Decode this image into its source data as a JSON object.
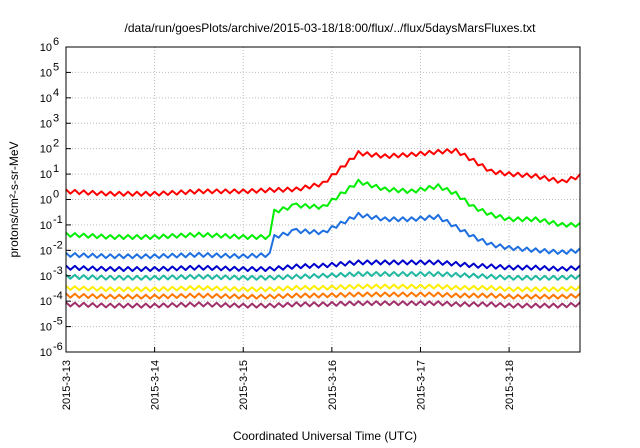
{
  "chart_data": {
    "type": "line",
    "title": "/data/run/goesPlots/archive/2015-03-18/18:00/flux/../flux/5daysMarsFluxes.txt",
    "xlabel": "Coordinated Universal Time (UTC)",
    "ylabel": "protons/cm²-s-sr-MeV",
    "y_scale": "log",
    "ylim": [
      1e-06,
      1000000.0
    ],
    "xlim": [
      0,
      5.8
    ],
    "x_ticks": [
      {
        "x": 0,
        "label": "2015-3-13"
      },
      {
        "x": 1,
        "label": "2015-3-14"
      },
      {
        "x": 2,
        "label": "2015-3-15"
      },
      {
        "x": 3,
        "label": "2015-3-16"
      },
      {
        "x": 4,
        "label": "2015-3-17"
      },
      {
        "x": 5,
        "label": "2015-3-18"
      }
    ],
    "y_ticks": [
      {
        "exp": -6,
        "label": "10",
        "sup": "-6"
      },
      {
        "exp": -5,
        "label": "10",
        "sup": "-5"
      },
      {
        "exp": -4,
        "label": "10",
        "sup": "-4"
      },
      {
        "exp": -3,
        "label": "10",
        "sup": "-3"
      },
      {
        "exp": -2,
        "label": "10",
        "sup": "-2"
      },
      {
        "exp": -1,
        "label": "10",
        "sup": "-1"
      },
      {
        "exp": 0,
        "label": "10",
        "sup": "0"
      },
      {
        "exp": 1,
        "label": "10",
        "sup": "1"
      },
      {
        "exp": 2,
        "label": "10",
        "sup": "2"
      },
      {
        "exp": 3,
        "label": "10",
        "sup": "3"
      },
      {
        "exp": 4,
        "label": "10",
        "sup": "4"
      },
      {
        "exp": 5,
        "label": "10",
        "sup": "5"
      },
      {
        "exp": 6,
        "label": "10",
        "sup": "6"
      }
    ],
    "grid": true,
    "legend": "none",
    "series": [
      {
        "color": "#ff0000",
        "x": [
          0,
          0.5,
          1,
          1.5,
          2,
          2.3,
          2.6,
          2.9,
          3.3,
          3.6,
          3.9,
          4.2,
          4.4,
          4.6,
          4.8,
          5.0,
          5.3,
          5.6,
          5.8
        ],
        "y": [
          2.5,
          2.0,
          2.0,
          2.5,
          2.5,
          2.8,
          3.0,
          5.0,
          80,
          60,
          70,
          90,
          100,
          40,
          15,
          12,
          10,
          6,
          10
        ]
      },
      {
        "color": "#00ee00",
        "x": [
          0,
          0.5,
          1,
          1.5,
          2,
          2.3,
          2.35,
          2.6,
          2.9,
          3.3,
          3.6,
          3.9,
          4.2,
          4.4,
          4.6,
          4.8,
          5.0,
          5.3,
          5.6,
          5.8
        ],
        "y": [
          0.05,
          0.04,
          0.04,
          0.05,
          0.04,
          0.04,
          0.4,
          0.7,
          0.6,
          6.0,
          3.0,
          2.5,
          4.0,
          2.0,
          0.6,
          0.3,
          0.2,
          0.2,
          0.12,
          0.12
        ]
      },
      {
        "color": "#1e6fe0",
        "x": [
          0,
          0.5,
          1,
          1.5,
          2,
          2.3,
          2.35,
          2.6,
          2.9,
          3.3,
          3.6,
          3.9,
          4.2,
          4.4,
          4.6,
          4.8,
          5.0,
          5.3,
          5.6,
          5.8
        ],
        "y": [
          0.008,
          0.007,
          0.007,
          0.008,
          0.007,
          0.008,
          0.04,
          0.07,
          0.06,
          0.3,
          0.2,
          0.2,
          0.25,
          0.1,
          0.04,
          0.02,
          0.015,
          0.012,
          0.01,
          0.012
        ]
      },
      {
        "color": "#0000cc",
        "x": [
          0,
          0.5,
          1,
          1.5,
          2,
          2.3,
          2.6,
          2.9,
          3.3,
          3.6,
          3.9,
          4.2,
          4.4,
          4.6,
          4.8,
          5.0,
          5.3,
          5.6,
          5.8
        ],
        "y": [
          0.0025,
          0.0022,
          0.0022,
          0.0025,
          0.0022,
          0.0022,
          0.0028,
          0.003,
          0.004,
          0.004,
          0.004,
          0.004,
          0.0035,
          0.003,
          0.0028,
          0.0025,
          0.0025,
          0.0022,
          0.0025
        ]
      },
      {
        "color": "#1fb8a0",
        "x": [
          0,
          0.5,
          1,
          1.5,
          2,
          2.3,
          2.6,
          2.9,
          3.3,
          3.6,
          3.9,
          4.2,
          4.4,
          4.6,
          4.8,
          5.0,
          5.3,
          5.6,
          5.8
        ],
        "y": [
          0.0011,
          0.001,
          0.001,
          0.0011,
          0.001,
          0.001,
          0.0011,
          0.0012,
          0.0014,
          0.0014,
          0.0014,
          0.0014,
          0.0013,
          0.0012,
          0.0011,
          0.001,
          0.001,
          0.001,
          0.0011
        ]
      },
      {
        "color": "#ffee00",
        "x": [
          0,
          0.5,
          1,
          1.5,
          2,
          2.3,
          2.6,
          2.9,
          3.3,
          3.6,
          3.9,
          4.2,
          4.4,
          4.6,
          4.8,
          5.0,
          5.3,
          5.6,
          5.8
        ],
        "y": [
          0.0004,
          0.00035,
          0.00035,
          0.0004,
          0.00035,
          0.00035,
          0.0004,
          0.0004,
          0.00045,
          0.00045,
          0.00045,
          0.00045,
          0.0004,
          0.0004,
          0.0004,
          0.00035,
          0.00035,
          0.00035,
          0.0004
        ]
      },
      {
        "color": "#ff7700",
        "x": [
          0,
          0.5,
          1,
          1.5,
          2,
          2.3,
          2.6,
          2.9,
          3.3,
          3.6,
          3.9,
          4.2,
          4.4,
          4.6,
          4.8,
          5.0,
          5.3,
          5.6,
          5.8
        ],
        "y": [
          0.0002,
          0.00018,
          0.00018,
          0.0002,
          0.00018,
          0.00018,
          0.0002,
          0.0002,
          0.00022,
          0.00022,
          0.00022,
          0.00022,
          0.0002,
          0.0002,
          0.0002,
          0.00018,
          0.00018,
          0.00018,
          0.0002
        ]
      },
      {
        "color": "#a0306a",
        "x": [
          0,
          0.5,
          1,
          1.5,
          2,
          2.3,
          2.6,
          2.9,
          3.3,
          3.6,
          3.9,
          4.2,
          4.4,
          4.6,
          4.8,
          5.0,
          5.3,
          5.6,
          5.8
        ],
        "y": [
          9e-05,
          8e-05,
          8e-05,
          9e-05,
          8e-05,
          8e-05,
          9e-05,
          9e-05,
          0.0001,
          0.0001,
          0.0001,
          0.0001,
          9e-05,
          9e-05,
          9e-05,
          8e-05,
          8e-05,
          8e-05,
          9e-05
        ]
      }
    ]
  }
}
